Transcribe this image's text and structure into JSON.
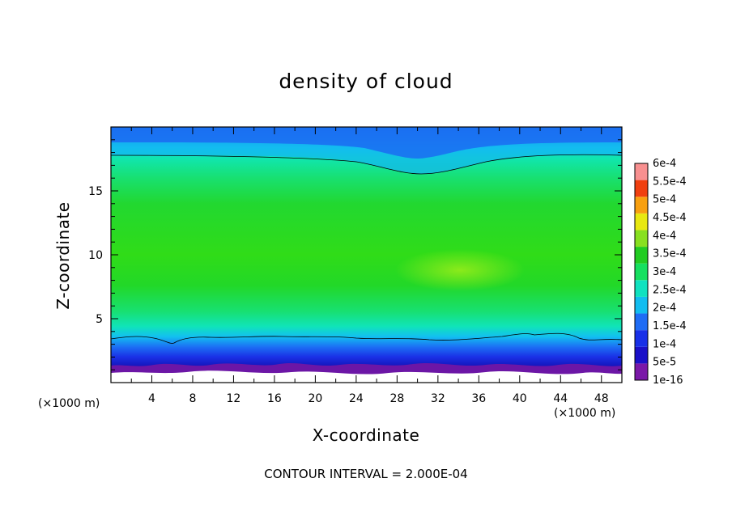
{
  "chart_data": {
    "type": "heatmap",
    "title": "density of cloud",
    "xlabel": "X-coordinate",
    "ylabel": "Z-coordinate",
    "x_unit_note": "(×1000 m)",
    "footer": "CONTOUR INTERVAL = 2.000E-04",
    "xlim": [
      0,
      50
    ],
    "ylim": [
      0,
      20
    ],
    "x_ticks": [
      4,
      8,
      12,
      16,
      20,
      24,
      28,
      32,
      36,
      40,
      44,
      48
    ],
    "x_tick_labels": [
      "4",
      "8",
      "12",
      "16",
      "20",
      "24",
      "28",
      "32",
      "36",
      "40",
      "44",
      "48"
    ],
    "y_ticks": [
      5,
      10,
      15
    ],
    "y_tick_labels": [
      "5",
      "10",
      "15"
    ],
    "colorbar": {
      "levels": [
        "1e-16",
        "5e-5",
        "1e-4",
        "1.5e-4",
        "2e-4",
        "2.5e-4",
        "3e-4",
        "3.5e-4",
        "4e-4",
        "4.5e-4",
        "5e-4",
        "5.5e-4",
        "6e-4"
      ],
      "colors": [
        "#7a18a8",
        "#1a10c8",
        "#1830e8",
        "#1f6cf5",
        "#12bdf0",
        "#10e2c0",
        "#16e060",
        "#22cc22",
        "#88e020",
        "#e8e810",
        "#f8a010",
        "#f04010",
        "#f89090"
      ]
    },
    "field_description_bands": [
      {
        "z_range": [
          0.5,
          1.5
        ],
        "density": "1e-16 to 5e-5"
      },
      {
        "z_range": [
          1.5,
          3.5
        ],
        "density": "5e-5 to 2e-4"
      },
      {
        "z_range": [
          3.5,
          17.5
        ],
        "density": "2e-4 to 3.5e-4"
      },
      {
        "z_range": [
          17.5,
          20
        ],
        "density": "1e-4 to 2e-4"
      }
    ]
  }
}
